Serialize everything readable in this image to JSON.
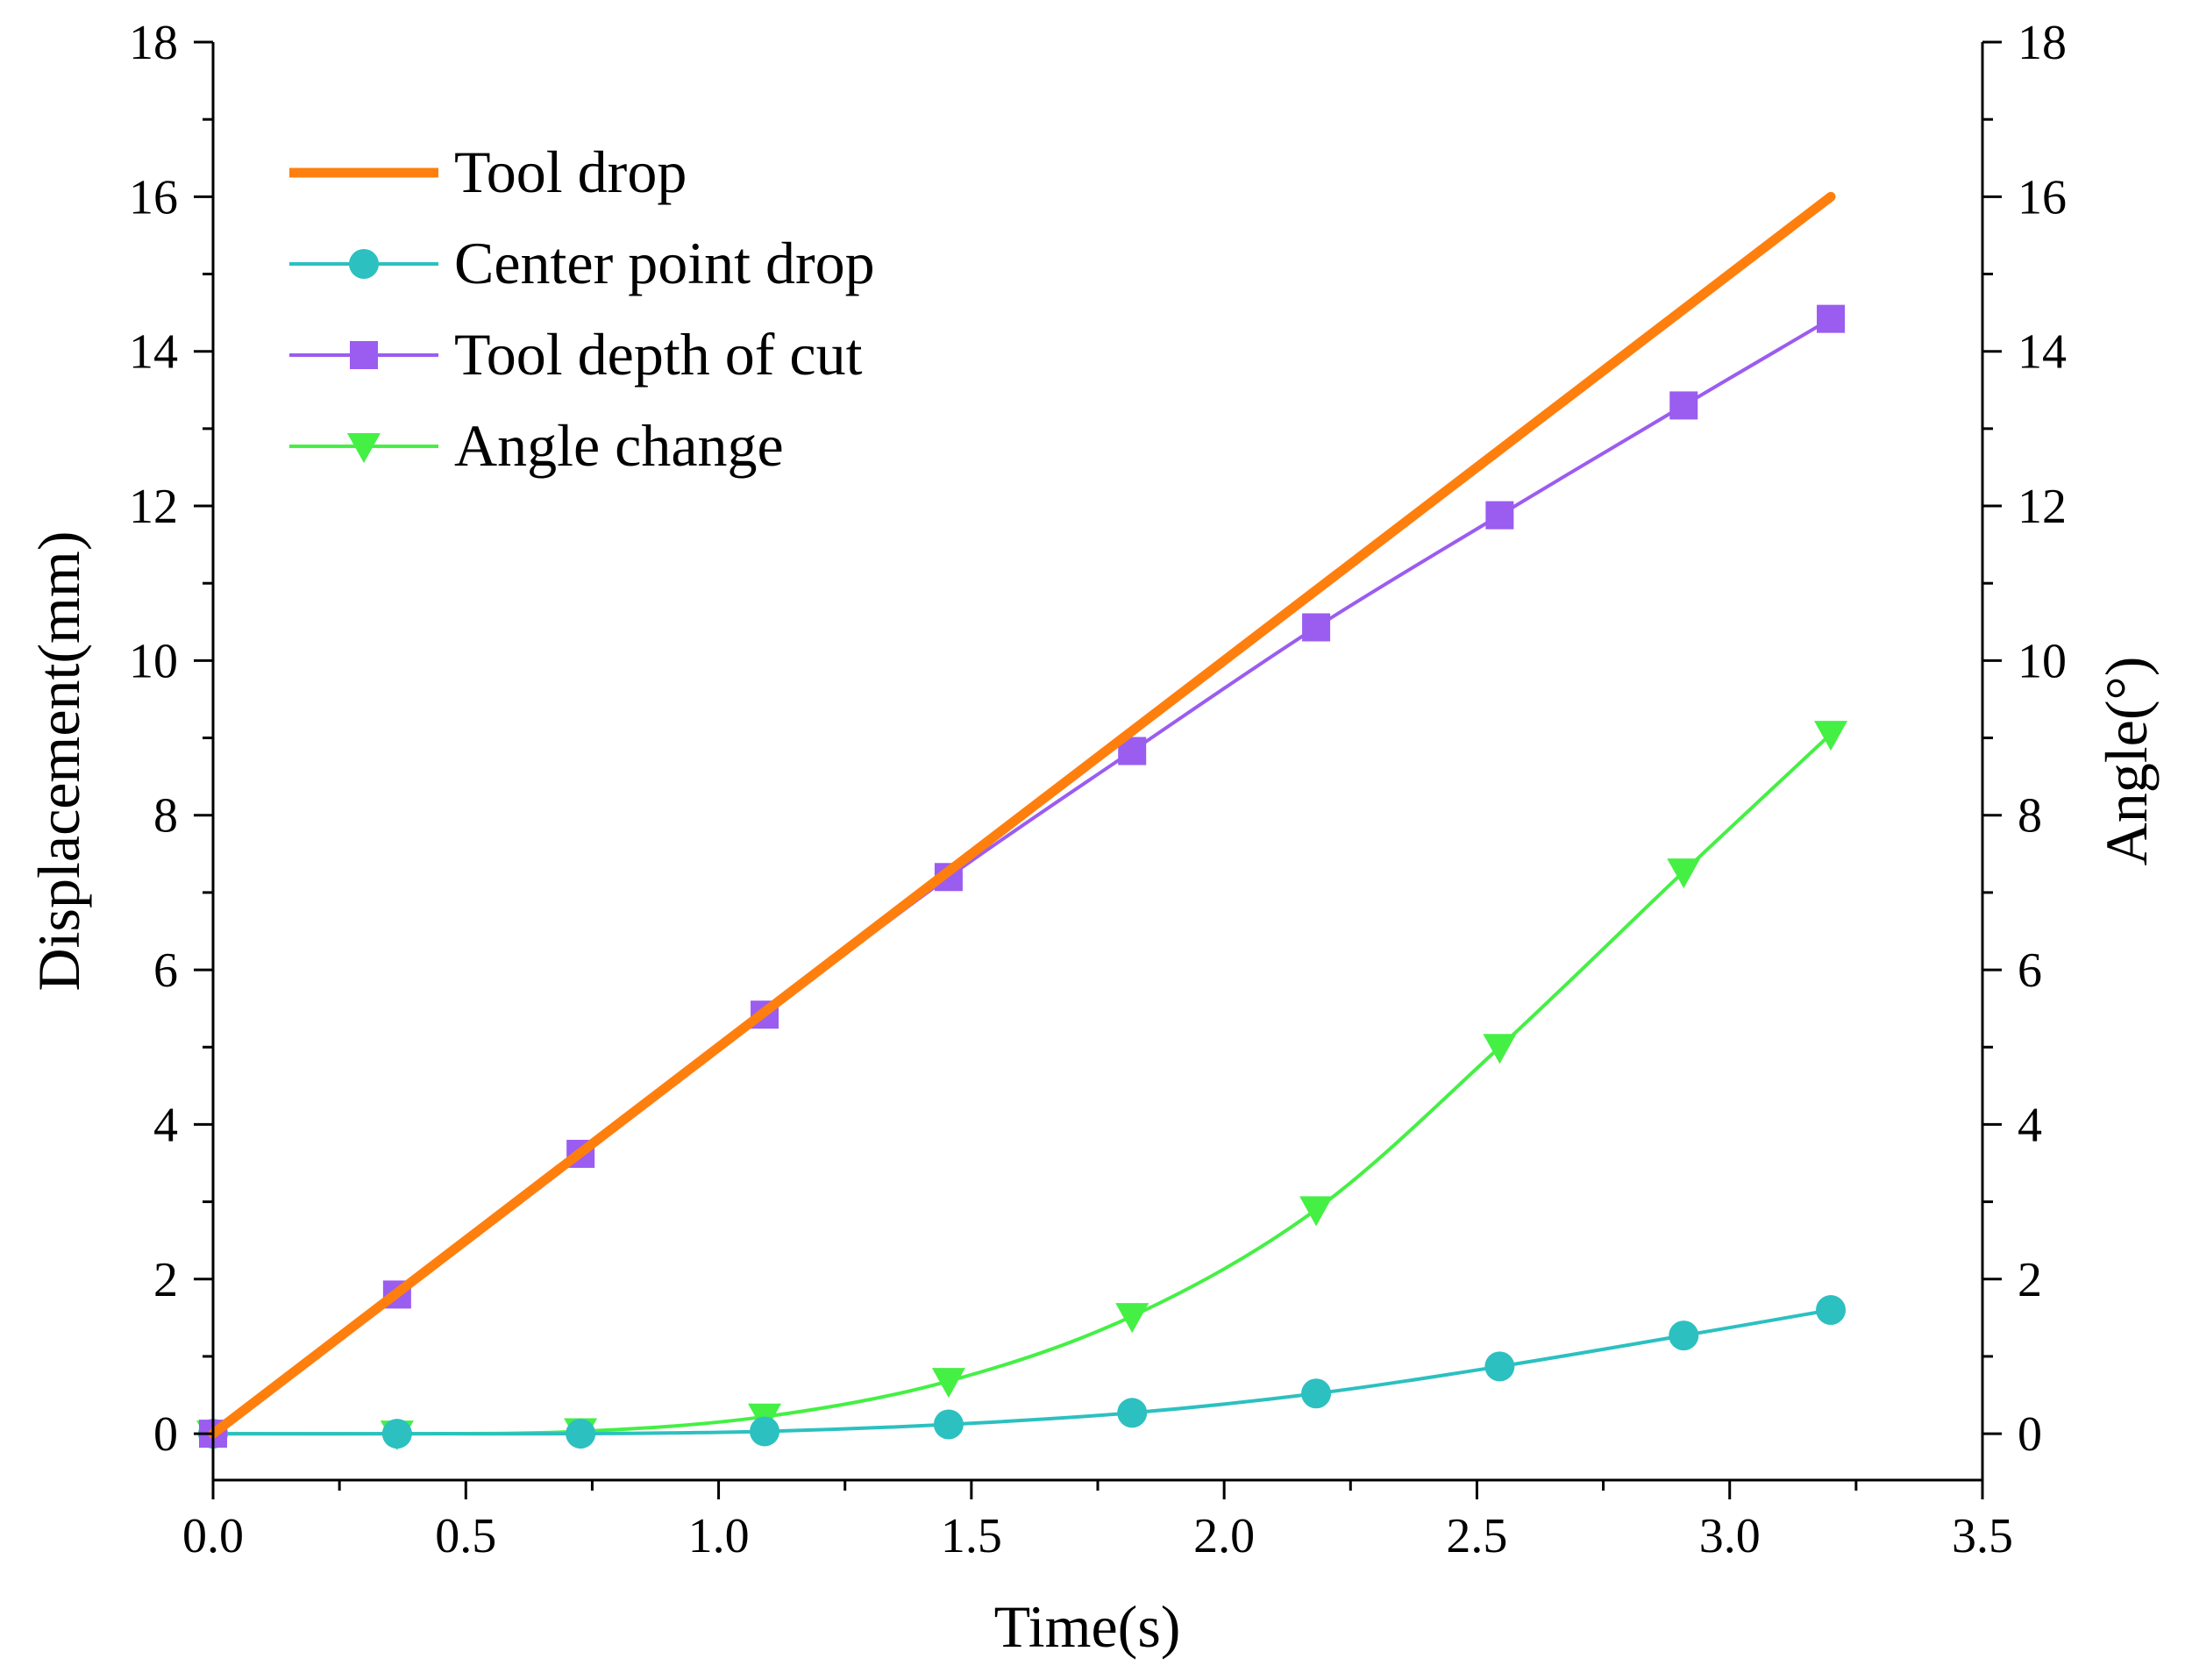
{
  "chart_data": {
    "type": "line",
    "title": "",
    "xlabel": "Time(s)",
    "ylabel": "Displacement(mm)",
    "y2label": "Angle(°)",
    "xlim": [
      0,
      3.5
    ],
    "ylim": [
      -0.6,
      18
    ],
    "y2lim": [
      -0.6,
      18
    ],
    "x_ticks": [
      0,
      0.5,
      1.0,
      1.5,
      2.0,
      2.5,
      3.0,
      3.5
    ],
    "x_tick_labels": [
      "0.0",
      "0.5",
      "1.0",
      "1.5",
      "2.0",
      "2.5",
      "3.0",
      "3.5"
    ],
    "y_ticks": [
      0,
      2,
      4,
      6,
      8,
      10,
      12,
      14,
      16,
      18
    ],
    "y_tick_labels": [
      "0",
      "2",
      "4",
      "6",
      "8",
      "10",
      "12",
      "14",
      "16",
      "18"
    ],
    "y2_ticks": [
      0,
      2,
      4,
      6,
      8,
      10,
      12,
      14,
      16,
      18
    ],
    "y2_tick_labels": [
      "0",
      "2",
      "4",
      "6",
      "8",
      "10",
      "12",
      "14",
      "16",
      "18"
    ],
    "legend_position": "top-left",
    "series": [
      {
        "name": "Tool drop",
        "color": "#FF7F0E",
        "marker": "none",
        "axis": "left",
        "x": [
          0,
          3.2
        ],
        "y": [
          0,
          16
        ]
      },
      {
        "name": "Center point drop",
        "color": "#2CC0C0",
        "marker": "circle",
        "axis": "left",
        "x": [
          0,
          0.364,
          0.727,
          1.091,
          1.455,
          1.818,
          2.182,
          2.545,
          2.909,
          3.2
        ],
        "y": [
          0,
          0,
          0,
          0.03,
          0.12,
          0.27,
          0.52,
          0.87,
          1.27,
          1.6
        ]
      },
      {
        "name": "Tool depth of cut",
        "color": "#9B5CF0",
        "marker": "square",
        "axis": "left",
        "x": [
          0,
          0.364,
          0.727,
          1.091,
          1.455,
          1.818,
          2.182,
          2.545,
          2.909,
          3.2
        ],
        "y": [
          0,
          1.8,
          3.62,
          5.42,
          7.2,
          8.83,
          10.43,
          11.88,
          13.3,
          14.42
        ]
      },
      {
        "name": "Angle change",
        "color": "#44F044",
        "marker": "triangle-down",
        "axis": "right",
        "x": [
          0,
          0.364,
          0.727,
          1.091,
          1.455,
          1.818,
          2.182,
          2.545,
          2.909,
          3.2
        ],
        "y": [
          0,
          0,
          0.03,
          0.22,
          0.68,
          1.52,
          2.9,
          5.0,
          7.27,
          9.05
        ]
      }
    ]
  }
}
